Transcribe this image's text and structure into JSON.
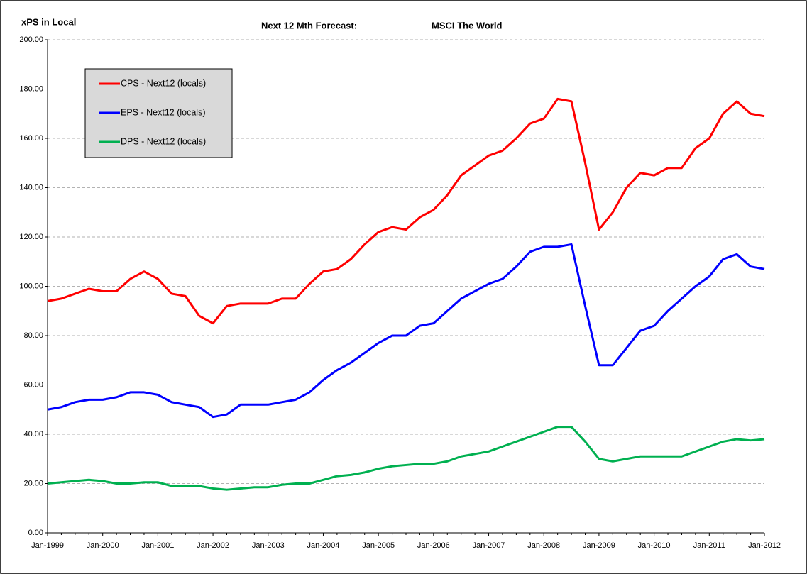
{
  "chart_data": {
    "type": "line",
    "title": "Next 12 Mth Forecast:",
    "subtitle": "MSCI The World",
    "y_label": "xPS in Local",
    "categories": [
      "Jan-1999",
      null,
      null,
      null,
      "Jan-2000",
      null,
      null,
      null,
      "Jan-2001",
      null,
      null,
      null,
      "Jan-2002",
      null,
      null,
      null,
      "Jan-2003",
      null,
      null,
      null,
      "Jan-2004",
      null,
      null,
      null,
      "Jan-2005",
      null,
      null,
      null,
      "Jan-2006",
      null,
      null,
      null,
      "Jan-2007",
      null,
      null,
      null,
      "Jan-2008",
      null,
      null,
      null,
      "Jan-2009",
      null,
      null,
      null,
      "Jan-2010",
      null,
      null,
      null,
      "Jan-2011",
      null,
      null,
      null,
      "Jan-2012"
    ],
    "series": [
      {
        "name": "CPS - Next12 (locals)",
        "color": "#ff0000",
        "values": [
          94,
          95,
          97,
          99,
          98,
          98,
          103,
          106,
          103,
          97,
          96,
          88,
          85,
          92,
          93,
          93,
          93,
          95,
          95,
          101,
          106,
          107,
          111,
          117,
          122,
          124,
          123,
          128,
          131,
          137,
          145,
          149,
          153,
          155,
          160,
          166,
          168,
          176,
          175,
          150,
          123,
          130,
          140,
          146,
          145,
          148,
          148,
          156,
          160,
          170,
          175,
          170,
          169
        ]
      },
      {
        "name": "EPS - Next12 (locals)",
        "color": "#0000ff",
        "values": [
          50,
          51,
          53,
          54,
          54,
          55,
          57,
          57,
          56,
          53,
          52,
          51,
          47,
          48,
          52,
          52,
          52,
          53,
          54,
          57,
          62,
          66,
          69,
          73,
          77,
          80,
          80,
          84,
          85,
          90,
          95,
          98,
          101,
          103,
          108,
          114,
          116,
          116,
          117,
          92,
          68,
          68,
          75,
          82,
          84,
          90,
          95,
          100,
          104,
          111,
          113,
          108,
          107
        ]
      },
      {
        "name": "DPS - Next12 (locals)",
        "color": "#00b050",
        "values": [
          20,
          20.5,
          21,
          21.5,
          21,
          20,
          20,
          20.5,
          20.5,
          19,
          19,
          19,
          18,
          17.5,
          18,
          18.5,
          18.5,
          19.5,
          20,
          20,
          21.5,
          23,
          23.5,
          24.5,
          26,
          27,
          27.5,
          28,
          28,
          29,
          31,
          32,
          33,
          35,
          37,
          39,
          41,
          43,
          43,
          37,
          30,
          29,
          30,
          31,
          31,
          31,
          31,
          33,
          35,
          37,
          38,
          37.5,
          38
        ]
      }
    ],
    "ylim": [
      0,
      200
    ],
    "yticks": [
      {
        "value": 0,
        "label": "0.00"
      },
      {
        "value": 20,
        "label": "20.00"
      },
      {
        "value": 40,
        "label": "40.00"
      },
      {
        "value": 60,
        "label": "60.00"
      },
      {
        "value": 80,
        "label": "80.00"
      },
      {
        "value": 100,
        "label": "100.00"
      },
      {
        "value": 120,
        "label": "120.00"
      },
      {
        "value": 140,
        "label": "140.00"
      },
      {
        "value": 160,
        "label": "160.00"
      },
      {
        "value": 180,
        "label": "180.00"
      },
      {
        "value": 200,
        "label": "200.00"
      }
    ],
    "grid": true,
    "legend": "upper left"
  }
}
